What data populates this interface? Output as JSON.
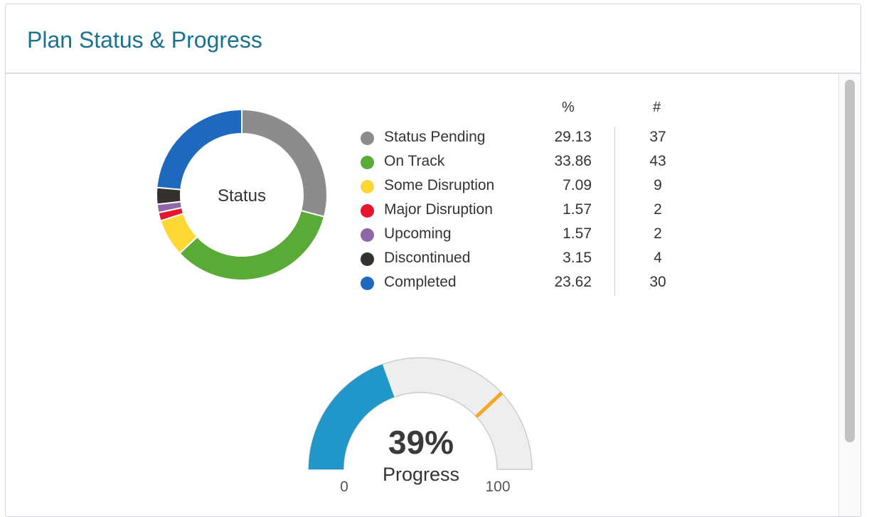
{
  "header": {
    "title": "Plan Status & Progress"
  },
  "chart_data": [
    {
      "type": "pie",
      "variant": "donut",
      "center_label": "Status",
      "columns": {
        "pct": "%",
        "count": "#"
      },
      "slices": [
        {
          "name": "Status Pending",
          "pct": "29.13",
          "count": "37",
          "value": 37,
          "color": "#8c8c8c"
        },
        {
          "name": "On Track",
          "pct": "33.86",
          "count": "43",
          "value": 43,
          "color": "#5aaa37"
        },
        {
          "name": "Some Disruption",
          "pct": "7.09",
          "count": "9",
          "value": 9,
          "color": "#fdd835"
        },
        {
          "name": "Major Disruption",
          "pct": "1.57",
          "count": "2",
          "value": 2,
          "color": "#e4152d"
        },
        {
          "name": "Upcoming",
          "pct": "1.57",
          "count": "2",
          "value": 2,
          "color": "#8e67a6"
        },
        {
          "name": "Discontinued",
          "pct": "3.15",
          "count": "4",
          "value": 4,
          "color": "#35312e"
        },
        {
          "name": "Completed",
          "pct": "23.62",
          "count": "30",
          "value": 30,
          "color": "#1e69bd"
        }
      ]
    },
    {
      "type": "gauge",
      "value": 39,
      "value_label": "39%",
      "label": "Progress",
      "min": 0,
      "max": 100,
      "min_label": "0",
      "max_label": "100",
      "target": 76,
      "colors": {
        "fill": "#2196c8",
        "track": "#eeeeee",
        "target": "#f5a623"
      }
    }
  ]
}
